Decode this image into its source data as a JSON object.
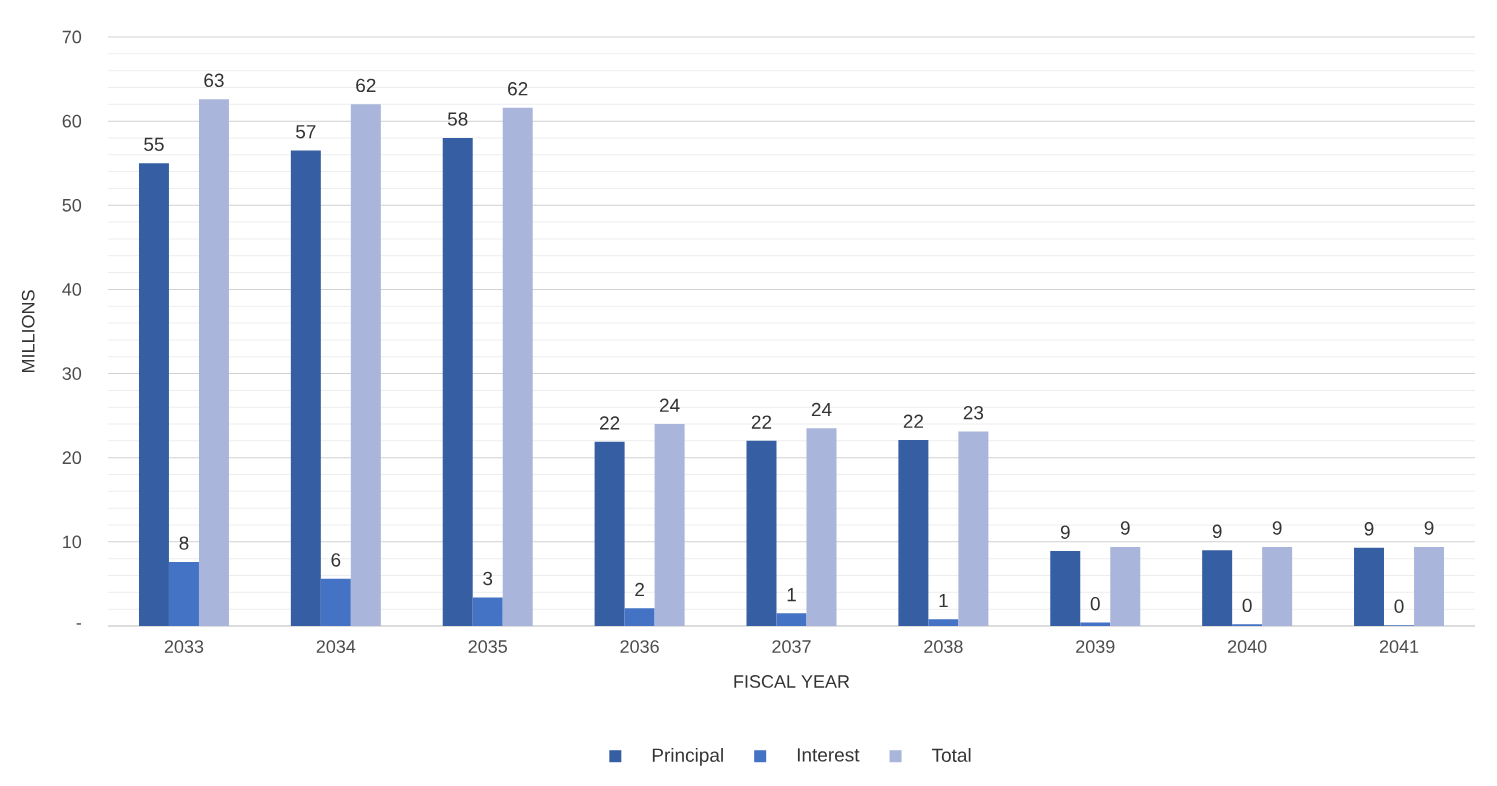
{
  "chart_data": {
    "type": "bar",
    "xlabel": "FISCAL YEAR",
    "ylabel": "MILLIONS",
    "categories": [
      "2033",
      "2034",
      "2035",
      "2036",
      "2037",
      "2038",
      "2039",
      "2040",
      "2041"
    ],
    "series": [
      {
        "name": "Principal",
        "color": "#365fa3",
        "values": [
          55.0,
          56.5,
          58.0,
          21.9,
          22.0,
          22.1,
          8.9,
          9.0,
          9.3
        ],
        "value_labels": [
          "55",
          "57",
          "58",
          "22",
          "22",
          "22",
          "9",
          "9",
          "9"
        ]
      },
      {
        "name": "Interest",
        "color": "#4472c4",
        "values": [
          7.6,
          5.6,
          3.4,
          2.1,
          1.5,
          0.8,
          0.4,
          0.2,
          0.1
        ],
        "value_labels": [
          "8",
          "6",
          "3",
          "2",
          "1",
          "1",
          "0",
          "0",
          "0"
        ]
      },
      {
        "name": "Total",
        "color": "#a9b5da",
        "values": [
          62.6,
          62.0,
          61.6,
          24.0,
          23.5,
          23.1,
          9.4,
          9.4,
          9.4
        ],
        "value_labels": [
          "63",
          "62",
          "62",
          "24",
          "24",
          "23",
          "9",
          "9",
          "9"
        ]
      }
    ],
    "ylim": [
      0,
      70
    ],
    "yticks": [
      {
        "value": 0,
        "label": "-"
      },
      {
        "value": 2,
        "label": null
      },
      {
        "value": 4,
        "label": null
      },
      {
        "value": 6,
        "label": null
      },
      {
        "value": 8,
        "label": null
      },
      10,
      {
        "value": 12,
        "label": null
      },
      {
        "value": 14,
        "label": null
      },
      {
        "value": 16,
        "label": null
      },
      {
        "value": 18,
        "label": null
      },
      20,
      {
        "value": 22,
        "label": null
      },
      {
        "value": 24,
        "label": null
      },
      {
        "value": 26,
        "label": null
      },
      {
        "value": 28,
        "label": null
      },
      30,
      {
        "value": 32,
        "label": null
      },
      {
        "value": 34,
        "label": null
      },
      {
        "value": 36,
        "label": null
      },
      {
        "value": 38,
        "label": null
      },
      40,
      {
        "value": 42,
        "label": null
      },
      {
        "value": 44,
        "label": null
      },
      {
        "value": 46,
        "label": null
      },
      {
        "value": 48,
        "label": null
      },
      50,
      {
        "value": 52,
        "label": null
      },
      {
        "value": 54,
        "label": null
      },
      {
        "value": 56,
        "label": null
      },
      {
        "value": 58,
        "label": null
      },
      60,
      {
        "value": 62,
        "label": null
      },
      {
        "value": 64,
        "label": null
      },
      {
        "value": 66,
        "label": null
      },
      {
        "value": 68,
        "label": null
      },
      70
    ],
    "grid": "y",
    "legend": "bottom"
  }
}
